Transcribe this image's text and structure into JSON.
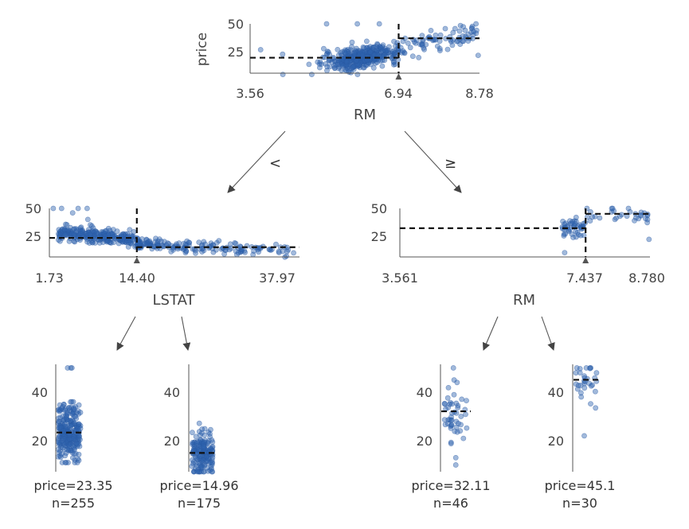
{
  "chart_data": [
    {
      "id": "root",
      "type": "scatter",
      "feature": "RM",
      "ylabel": "price",
      "xlim": [
        3.56,
        8.78
      ],
      "ylim": [
        5,
        50
      ],
      "xticks": [
        "3.56",
        "6.94",
        "8.78"
      ],
      "yticks": [
        "25",
        "50"
      ],
      "split": 6.94,
      "left_mean": 19.9,
      "right_mean": 37.2
    },
    {
      "id": "left",
      "type": "scatter",
      "feature": "LSTAT",
      "ylabel": "",
      "xlim": [
        1.73,
        37.97
      ],
      "ylim": [
        5,
        50
      ],
      "xticks": [
        "1.73",
        "14.40",
        "37.97"
      ],
      "yticks": [
        "25",
        "50"
      ],
      "split": 14.4,
      "left_mean": 23.35,
      "right_mean": 14.96
    },
    {
      "id": "right",
      "type": "scatter",
      "feature": "RM",
      "ylabel": "",
      "xlim": [
        3.561,
        8.78
      ],
      "ylim": [
        5,
        50
      ],
      "xticks": [
        "3.561",
        "7.437",
        "8.780"
      ],
      "yticks": [
        "25",
        "50"
      ],
      "split": 7.437,
      "left_mean": 32.11,
      "right_mean": 45.1
    },
    {
      "id": "leaf1",
      "type": "scatter",
      "label": "price=23.35",
      "count": "n=255",
      "mean": 23.35,
      "n": 255,
      "yticks": [
        "20",
        "40"
      ],
      "ylim": [
        5,
        52
      ]
    },
    {
      "id": "leaf2",
      "type": "scatter",
      "label": "price=14.96",
      "count": "n=175",
      "mean": 14.96,
      "n": 175,
      "yticks": [
        "20",
        "40"
      ],
      "ylim": [
        5,
        52
      ]
    },
    {
      "id": "leaf3",
      "type": "scatter",
      "label": "price=32.11",
      "count": "n=46",
      "mean": 32.11,
      "n": 46,
      "yticks": [
        "20",
        "40"
      ],
      "ylim": [
        5,
        52
      ]
    },
    {
      "id": "leaf4",
      "type": "scatter",
      "label": "price=45.1",
      "count": "n=30",
      "mean": 45.1,
      "n": 30,
      "yticks": [
        "20",
        "40"
      ],
      "ylim": [
        5,
        52
      ]
    }
  ],
  "edges": {
    "less": "<",
    "greater_equal": "≥"
  }
}
